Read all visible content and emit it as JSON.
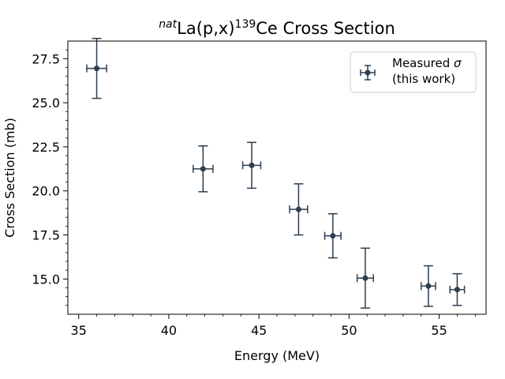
{
  "chart_data": {
    "type": "scatter",
    "title": {
      "prefix_sup": "nat",
      "main": "La(p,x)",
      "mid_sup": "139",
      "suffix": "Ce Cross Section"
    },
    "xlabel": "Energy (MeV)",
    "ylabel": "Cross Section (mb)",
    "xlim": [
      34.4,
      57.6
    ],
    "ylim": [
      13.0,
      28.5
    ],
    "xticks": [
      35,
      40,
      45,
      50,
      55
    ],
    "xtick_labels": [
      "35",
      "40",
      "45",
      "50",
      "55"
    ],
    "yticks": [
      15.0,
      17.5,
      20.0,
      22.5,
      25.0,
      27.5
    ],
    "ytick_labels": [
      "15.0",
      "17.5",
      "20.0",
      "22.5",
      "25.0",
      "27.5"
    ],
    "grid": false,
    "legend_position": "top-right",
    "color": "#2c3e50",
    "series": [
      {
        "name": "Measured σ\n(this work)",
        "points": [
          {
            "x": 36.0,
            "y": 26.95,
            "xerr": 0.55,
            "yerr": 1.7
          },
          {
            "x": 41.9,
            "y": 21.25,
            "xerr": 0.55,
            "yerr": 1.3
          },
          {
            "x": 44.6,
            "y": 21.45,
            "xerr": 0.5,
            "yerr": 1.3
          },
          {
            "x": 47.2,
            "y": 18.95,
            "xerr": 0.5,
            "yerr": 1.45
          },
          {
            "x": 49.1,
            "y": 17.45,
            "xerr": 0.45,
            "yerr": 1.25
          },
          {
            "x": 50.9,
            "y": 15.05,
            "xerr": 0.45,
            "yerr": 1.7
          },
          {
            "x": 54.4,
            "y": 14.6,
            "xerr": 0.4,
            "yerr": 1.15
          },
          {
            "x": 56.0,
            "y": 14.4,
            "xerr": 0.4,
            "yerr": 0.9
          }
        ]
      }
    ]
  }
}
